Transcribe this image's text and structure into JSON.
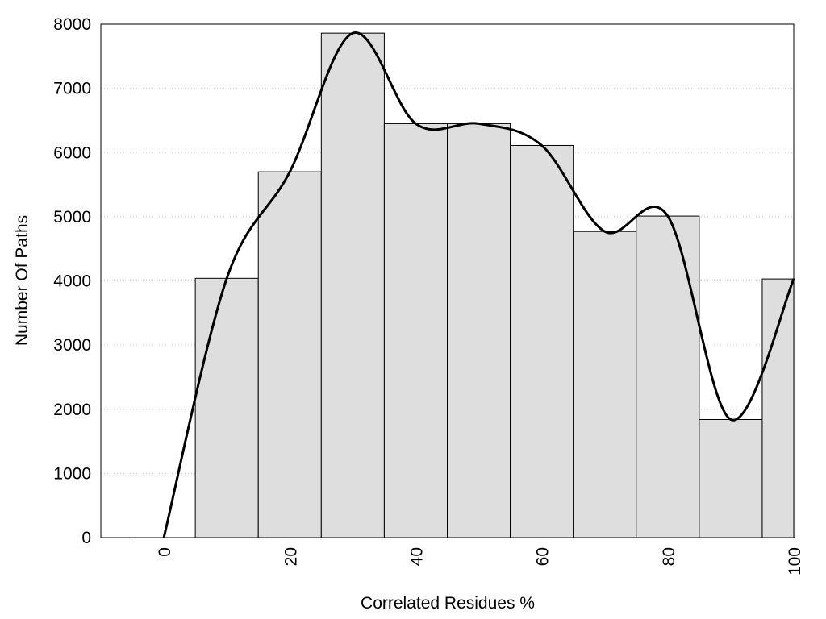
{
  "chart_data": {
    "type": "histogram",
    "xlabel": "Correlated Residues %",
    "ylabel": "Number Of Paths",
    "bins": [
      -5,
      5,
      15,
      25,
      35,
      45,
      55,
      65,
      75,
      85,
      95,
      105
    ],
    "values": [
      0,
      4040,
      5700,
      7860,
      6450,
      6450,
      6110,
      4770,
      5010,
      1840,
      4030
    ],
    "color": "#dedede",
    "curve": {
      "x": [
        0,
        10,
        20,
        30,
        40,
        50,
        60,
        70,
        80,
        90,
        100
      ],
      "values": [
        0,
        4040,
        5700,
        7860,
        6450,
        6450,
        6110,
        4770,
        5010,
        1840,
        4030
      ],
      "color": "#000000"
    },
    "xlim": [
      -10,
      100
    ],
    "ylim": [
      0,
      8000
    ],
    "xticks": [
      0,
      20,
      40,
      60,
      80,
      100
    ],
    "yticks": [
      0,
      1000,
      2000,
      3000,
      4000,
      5000,
      6000,
      7000,
      8000
    ],
    "grid": true
  }
}
